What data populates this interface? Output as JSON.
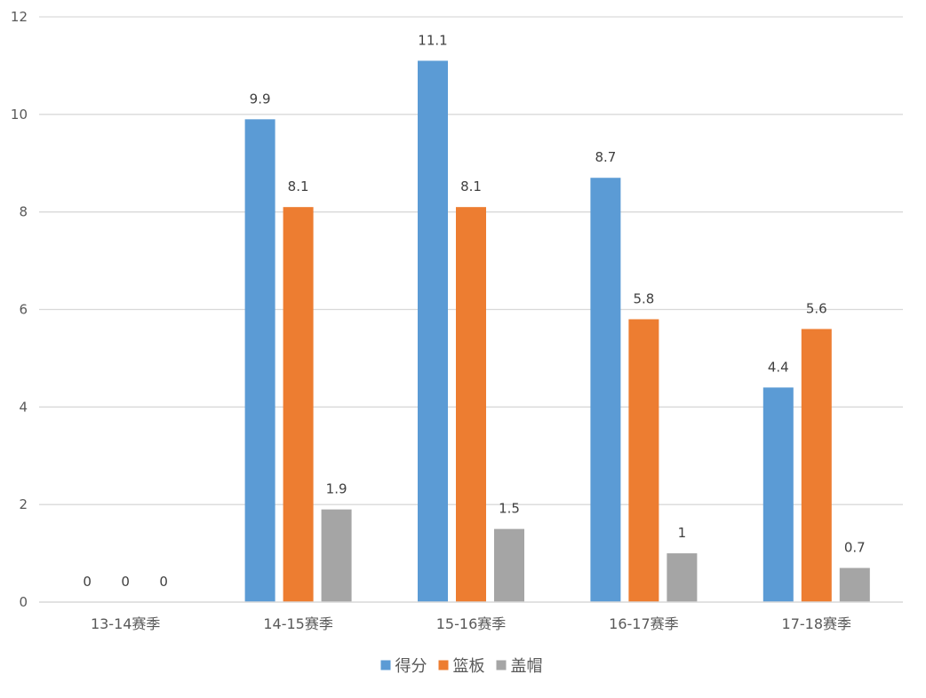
{
  "chart_data": {
    "type": "bar",
    "title": "",
    "xlabel": "",
    "ylabel": "",
    "categories": [
      "13-14赛季",
      "14-15赛季",
      "15-16赛季",
      "16-17赛季",
      "17-18赛季"
    ],
    "series": [
      {
        "name": "得分",
        "color": "#5B9BD5",
        "values": [
          0,
          9.9,
          11.1,
          8.7,
          4.4
        ]
      },
      {
        "name": "篮板",
        "color": "#ED7D31",
        "values": [
          0,
          8.1,
          8.1,
          5.8,
          5.6
        ]
      },
      {
        "name": "盖帽",
        "color": "#A5A5A5",
        "values": [
          0,
          1.9,
          1.5,
          1,
          0.7
        ]
      }
    ],
    "ylim": [
      0,
      12
    ],
    "yticks": [
      0,
      2,
      4,
      6,
      8,
      10,
      12
    ],
    "grid": true,
    "legend_position": "bottom",
    "data_labels": true
  }
}
